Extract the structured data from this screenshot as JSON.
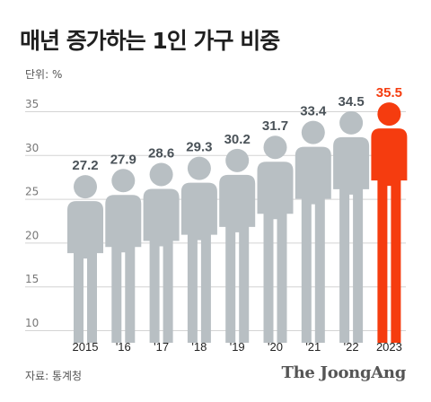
{
  "title": "매년 증가하는 1인 가구 비중",
  "unit_label": "단위: %",
  "source_label": "자료: 통계청",
  "brand_label": "The JoongAng",
  "colors": {
    "figure_default": "#b8bfc3",
    "figure_highlight": "#f53c0f",
    "value_label_default": "#4a5258",
    "value_label_highlight": "#f53c0f",
    "gridline": "#d4d4d4"
  },
  "chart_data": {
    "type": "bar",
    "title": "매년 증가하는 1인 가구 비중",
    "ylabel": "단위: %",
    "xlabel": "",
    "categories": [
      "2015",
      "'16",
      "'17",
      "'18",
      "'19",
      "'20",
      "'21",
      "'22",
      "2023"
    ],
    "values": [
      27.2,
      27.9,
      28.6,
      29.3,
      30.2,
      31.7,
      33.4,
      34.5,
      35.5
    ],
    "value_labels": [
      "27.2",
      "27.9",
      "28.6",
      "29.3",
      "30.2",
      "31.7",
      "33.4",
      "34.5",
      "35.5"
    ],
    "highlight_index": 8,
    "ylim": [
      10,
      35
    ],
    "yticks": [
      10,
      15,
      20,
      25,
      30,
      35
    ],
    "grid": true,
    "mark_shape": "person-icon"
  }
}
